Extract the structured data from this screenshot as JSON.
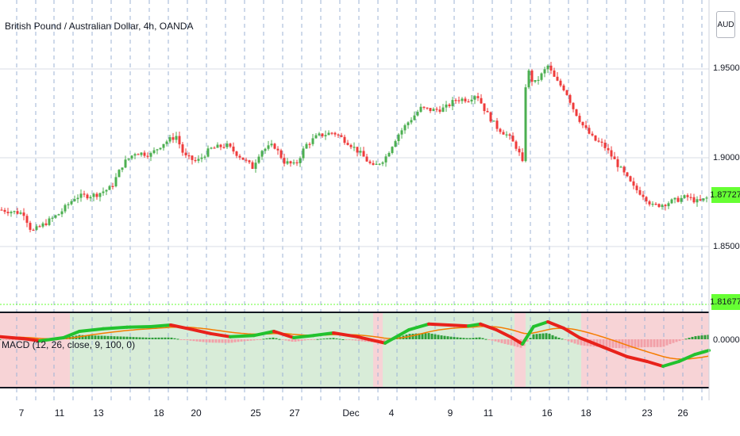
{
  "header": {
    "title": "British Pound / Australian Dollar, 4h, OANDA",
    "currency_button": "AUD"
  },
  "macd_label": "MACD (12, 26, close, 9, 100, 0)",
  "price_axis": {
    "ticks": [
      "1.95000",
      "1.90000",
      "1.85000"
    ],
    "current_price": "1.87727",
    "lower_line_price": "1.81677"
  },
  "macd_axis": {
    "ticks": [
      "0.00000"
    ]
  },
  "time_axis": {
    "ticks": [
      "7",
      "11",
      "13",
      "18",
      "20",
      "25",
      "27",
      "Dec",
      "4",
      "9",
      "11",
      "16",
      "18",
      "23",
      "26"
    ]
  },
  "colors": {
    "up": "#4caf50",
    "down": "#ef3b3b",
    "macd_up": "#22c22e",
    "macd_down": "#e8221b",
    "signal": "#f57c00",
    "hist_up": "#2e9e3a",
    "hist_down": "#f2a0a8",
    "bg_bull": "#d8ecd8",
    "bg_bear": "#f7d3d6",
    "price_tag": "#66ff33"
  },
  "chart_data": {
    "type": "candlestick",
    "interval": "4h",
    "price_range": [
      1.816,
      1.958
    ],
    "close_path": [
      [
        0,
        1.87
      ],
      [
        30,
        1.868
      ],
      [
        40,
        1.858
      ],
      [
        55,
        1.862
      ],
      [
        75,
        1.868
      ],
      [
        95,
        1.877
      ],
      [
        120,
        1.878
      ],
      [
        140,
        1.882
      ],
      [
        155,
        1.895
      ],
      [
        170,
        1.901
      ],
      [
        190,
        1.9
      ],
      [
        205,
        1.906
      ],
      [
        222,
        1.91
      ],
      [
        232,
        1.899
      ],
      [
        248,
        1.896
      ],
      [
        265,
        1.903
      ],
      [
        285,
        1.905
      ],
      [
        305,
        1.898
      ],
      [
        318,
        1.893
      ],
      [
        328,
        1.902
      ],
      [
        345,
        1.905
      ],
      [
        358,
        1.896
      ],
      [
        372,
        1.894
      ],
      [
        385,
        1.905
      ],
      [
        400,
        1.91
      ],
      [
        420,
        1.912
      ],
      [
        440,
        1.906
      ],
      [
        455,
        1.9
      ],
      [
        470,
        1.893
      ],
      [
        485,
        1.898
      ],
      [
        500,
        1.91
      ],
      [
        515,
        1.918
      ],
      [
        530,
        1.925
      ],
      [
        545,
        1.924
      ],
      [
        560,
        1.925
      ],
      [
        575,
        1.93
      ],
      [
        590,
        1.93
      ],
      [
        600,
        1.933
      ],
      [
        612,
        1.923
      ],
      [
        625,
        1.915
      ],
      [
        640,
        1.91
      ],
      [
        652,
        1.903
      ],
      [
        658,
        1.895
      ],
      [
        663,
        1.948
      ],
      [
        672,
        1.938
      ],
      [
        680,
        1.942
      ],
      [
        690,
        1.948
      ],
      [
        700,
        1.94
      ],
      [
        712,
        1.935
      ],
      [
        722,
        1.925
      ],
      [
        735,
        1.915
      ],
      [
        748,
        1.908
      ],
      [
        760,
        1.905
      ],
      [
        772,
        1.898
      ],
      [
        785,
        1.89
      ],
      [
        798,
        1.882
      ],
      [
        810,
        1.878
      ],
      [
        822,
        1.872
      ],
      [
        835,
        1.873
      ],
      [
        850,
        1.875
      ],
      [
        865,
        1.877
      ],
      [
        880,
        1.874
      ],
      [
        893,
        1.877
      ]
    ],
    "macd_path": [
      [
        0,
        0.08
      ],
      [
        30,
        0.02
      ],
      [
        50,
        -0.05
      ],
      [
        80,
        0.05
      ],
      [
        100,
        0.25
      ],
      [
        130,
        0.33
      ],
      [
        160,
        0.38
      ],
      [
        190,
        0.4
      ],
      [
        215,
        0.45
      ],
      [
        240,
        0.32
      ],
      [
        265,
        0.18
      ],
      [
        290,
        0.08
      ],
      [
        320,
        0.12
      ],
      [
        345,
        0.25
      ],
      [
        370,
        0.05
      ],
      [
        395,
        0.12
      ],
      [
        420,
        0.2
      ],
      [
        450,
        0.08
      ],
      [
        485,
        -0.12
      ],
      [
        515,
        0.3
      ],
      [
        540,
        0.48
      ],
      [
        565,
        0.45
      ],
      [
        590,
        0.42
      ],
      [
        605,
        0.48
      ],
      [
        625,
        0.3
      ],
      [
        645,
        0.05
      ],
      [
        658,
        -0.15
      ],
      [
        672,
        0.4
      ],
      [
        690,
        0.55
      ],
      [
        710,
        0.35
      ],
      [
        730,
        0.05
      ],
      [
        760,
        -0.25
      ],
      [
        790,
        -0.55
      ],
      [
        815,
        -0.7
      ],
      [
        835,
        -0.85
      ],
      [
        855,
        -0.7
      ],
      [
        875,
        -0.48
      ],
      [
        893,
        -0.35
      ]
    ]
  }
}
